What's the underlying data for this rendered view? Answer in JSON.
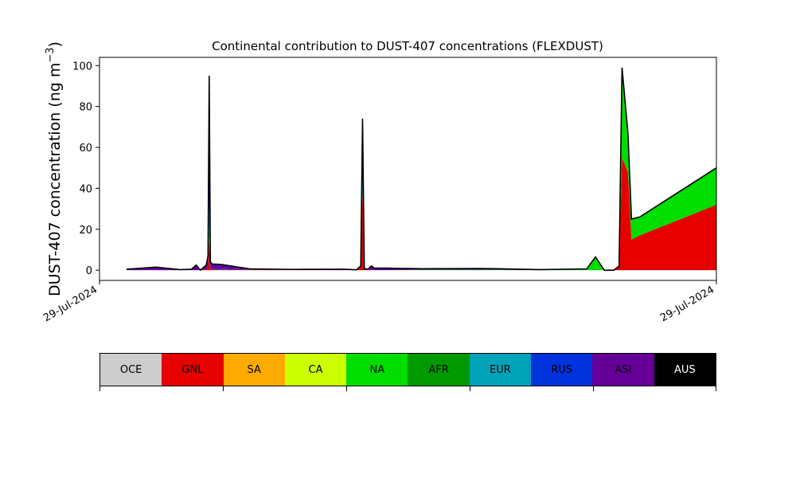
{
  "chart_data": {
    "type": "area",
    "stacked": true,
    "title": "Continental contribution to DUST-407 concentrations (FLEXDUST)",
    "ylabel_main": "DUST-407 concentration (ng m",
    "ylabel_exp": "−3",
    "ylabel_close": ")",
    "ylim": [
      -5,
      104
    ],
    "yticks": [
      0,
      20,
      40,
      60,
      80,
      100
    ],
    "xlim": [
      -0.046,
      1.0
    ],
    "xtick_labels": [
      "29-Jul-2024",
      "29-Jul-2024"
    ],
    "x": [
      0.0,
      0.05,
      0.09,
      0.11,
      0.118,
      0.125,
      0.135,
      0.138,
      0.14,
      0.142,
      0.145,
      0.16,
      0.21,
      0.28,
      0.37,
      0.39,
      0.397,
      0.4,
      0.403,
      0.41,
      0.415,
      0.42,
      0.44,
      0.5,
      0.6,
      0.63,
      0.7,
      0.78,
      0.795,
      0.81,
      0.818,
      0.826,
      0.835,
      0.84,
      0.85,
      0.856,
      0.87,
      1.0
    ],
    "series": [
      {
        "name": "OCE",
        "color": "#cccccc",
        "values": [
          0,
          0,
          0,
          0,
          0,
          0,
          0,
          0,
          0,
          0,
          0,
          0,
          0,
          0,
          0,
          0,
          0,
          0,
          0,
          0,
          0,
          0,
          0,
          0,
          0,
          0,
          0,
          0,
          0,
          0,
          0,
          0,
          0,
          0,
          0,
          0,
          0,
          0
        ]
      },
      {
        "name": "GNL",
        "color": "#e60000",
        "values": [
          0,
          0,
          0,
          0,
          0,
          0,
          0.5,
          2,
          15,
          0.5,
          0.5,
          0.3,
          0.2,
          0.1,
          0,
          0.1,
          2,
          40,
          0.5,
          0.1,
          0.1,
          0,
          0,
          0,
          0,
          0,
          0,
          0,
          0,
          0,
          0,
          0,
          2,
          55,
          48,
          15,
          17,
          32
        ]
      },
      {
        "name": "SA",
        "color": "#ffaa00",
        "values": [
          0,
          0,
          0,
          0,
          0,
          0,
          0,
          0,
          0,
          0,
          0,
          0,
          0,
          0,
          0,
          0,
          0,
          0,
          0,
          0,
          0,
          0,
          0,
          0,
          0,
          0,
          0,
          0,
          0,
          0,
          0,
          0,
          0,
          0,
          0,
          0,
          0,
          0
        ]
      },
      {
        "name": "CA",
        "color": "#ccff00",
        "values": [
          0,
          0,
          0,
          0,
          0,
          0,
          0,
          0,
          1,
          0,
          0,
          0,
          0,
          0,
          0,
          0,
          0,
          0,
          0,
          0,
          0,
          0,
          0,
          0,
          0,
          0,
          0,
          0,
          0,
          0,
          0,
          0,
          0,
          0,
          0,
          0,
          0,
          0
        ]
      },
      {
        "name": "NA",
        "color": "#00dd00",
        "values": [
          0,
          0,
          0,
          0,
          0,
          0,
          0,
          0,
          5,
          0,
          0,
          0,
          0,
          0,
          0,
          0,
          0,
          0,
          0,
          0,
          0,
          0,
          0,
          0.2,
          0.2,
          0.2,
          0,
          0.5,
          6,
          0,
          0,
          0,
          0,
          40,
          18,
          10,
          9,
          18
        ]
      },
      {
        "name": "AFR",
        "color": "#009900",
        "values": [
          0,
          0,
          0,
          0,
          0,
          0,
          0,
          0,
          0,
          0,
          0,
          0,
          0,
          0,
          0,
          0,
          0,
          0,
          0,
          0,
          0,
          0,
          0,
          0,
          0,
          0,
          0,
          0,
          0,
          0,
          0,
          0,
          0,
          0,
          0,
          0,
          0,
          0
        ]
      },
      {
        "name": "EUR",
        "color": "#00a3b8",
        "values": [
          0,
          0,
          0,
          0,
          0,
          0,
          0,
          0,
          10,
          0,
          0,
          0,
          0,
          0,
          0,
          0,
          0,
          15,
          0,
          0,
          0,
          0,
          0,
          0,
          0,
          0,
          0,
          0,
          0,
          0,
          0,
          0,
          0,
          0,
          0,
          0,
          0,
          0
        ]
      },
      {
        "name": "RUS",
        "color": "#0033dd",
        "values": [
          0,
          0,
          0,
          0,
          0,
          0,
          0,
          0,
          55,
          0.5,
          0.5,
          0.5,
          0.1,
          0,
          0,
          0,
          0,
          15,
          0,
          0,
          0,
          0,
          0,
          0,
          0,
          0,
          0,
          0,
          0,
          0,
          0,
          0,
          0,
          0,
          0,
          0,
          0,
          0
        ]
      },
      {
        "name": "ASI",
        "color": "#660099",
        "values": [
          0.5,
          1.5,
          0.3,
          0.5,
          2.5,
          0,
          2,
          5,
          9,
          3,
          2,
          2,
          0.3,
          0.3,
          0.5,
          0.1,
          0.1,
          4,
          0.1,
          0.5,
          2,
          1,
          1,
          0.5,
          0.6,
          0.5,
          0.3,
          0.1,
          0.5,
          0,
          0,
          0,
          0,
          4,
          1,
          0,
          0,
          0
        ]
      },
      {
        "name": "AUS",
        "color": "#000000",
        "values": [
          0,
          0,
          0,
          0,
          0,
          0,
          0,
          0,
          0,
          0,
          0,
          0,
          0,
          0,
          0,
          0,
          0,
          0,
          0,
          0,
          0,
          0,
          0,
          0,
          0,
          0,
          0,
          0,
          0,
          0,
          0,
          0,
          0,
          0,
          0,
          0,
          0,
          0
        ]
      }
    ]
  }
}
